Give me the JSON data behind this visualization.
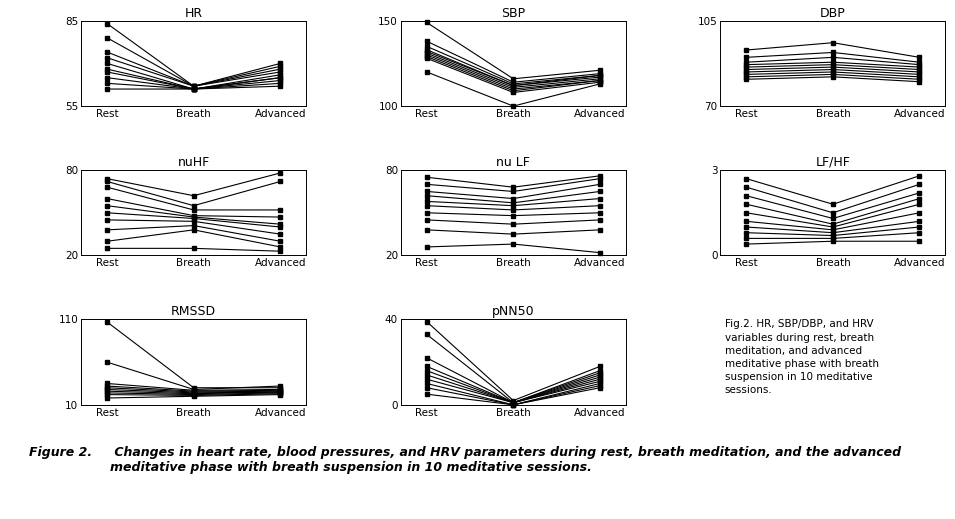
{
  "subplots": [
    {
      "title": "HR",
      "ylim": [
        55,
        85
      ],
      "yticks": [
        55,
        85
      ],
      "series": [
        [
          84,
          62,
          70
        ],
        [
          79,
          62,
          69
        ],
        [
          74,
          62,
          68
        ],
        [
          72,
          62,
          67
        ],
        [
          70,
          61,
          66
        ],
        [
          68,
          61,
          65
        ],
        [
          67,
          61,
          65
        ],
        [
          65,
          61,
          64
        ],
        [
          63,
          61,
          63
        ],
        [
          61,
          61,
          62
        ]
      ]
    },
    {
      "title": "SBP",
      "ylim": [
        100,
        150
      ],
      "yticks": [
        100,
        150
      ],
      "series": [
        [
          149,
          116,
          121
        ],
        [
          138,
          114,
          119
        ],
        [
          135,
          113,
          118
        ],
        [
          133,
          112,
          118
        ],
        [
          132,
          112,
          117
        ],
        [
          131,
          111,
          116
        ],
        [
          130,
          110,
          115
        ],
        [
          129,
          109,
          115
        ],
        [
          128,
          108,
          114
        ],
        [
          120,
          100,
          113
        ]
      ]
    },
    {
      "title": "DBP",
      "ylim": [
        70,
        105
      ],
      "yticks": [
        70,
        105
      ],
      "series": [
        [
          93,
          96,
          90
        ],
        [
          90,
          92,
          88
        ],
        [
          88,
          90,
          87
        ],
        [
          87,
          88,
          86
        ],
        [
          86,
          87,
          85
        ],
        [
          85,
          86,
          84
        ],
        [
          84,
          85,
          83
        ],
        [
          83,
          84,
          82
        ],
        [
          82,
          83,
          81
        ],
        [
          81,
          82,
          80
        ]
      ]
    },
    {
      "title": "nuHF",
      "ylim": [
        20,
        80
      ],
      "yticks": [
        20,
        80
      ],
      "series": [
        [
          74,
          62,
          78
        ],
        [
          72,
          55,
          72
        ],
        [
          68,
          52,
          52
        ],
        [
          60,
          48,
          47
        ],
        [
          55,
          47,
          42
        ],
        [
          50,
          46,
          40
        ],
        [
          45,
          44,
          35
        ],
        [
          38,
          41,
          30
        ],
        [
          30,
          38,
          26
        ],
        [
          25,
          25,
          23
        ]
      ]
    },
    {
      "title": "nu LF",
      "ylim": [
        20,
        80
      ],
      "yticks": [
        20,
        80
      ],
      "series": [
        [
          75,
          68,
          76
        ],
        [
          70,
          65,
          74
        ],
        [
          65,
          60,
          70
        ],
        [
          62,
          57,
          65
        ],
        [
          58,
          55,
          60
        ],
        [
          55,
          52,
          55
        ],
        [
          50,
          48,
          50
        ],
        [
          45,
          42,
          45
        ],
        [
          38,
          35,
          38
        ],
        [
          26,
          28,
          22
        ]
      ]
    },
    {
      "title": "LF/HF",
      "ylim": [
        0,
        3
      ],
      "yticks": [
        0,
        3
      ],
      "series": [
        [
          2.7,
          1.8,
          2.8
        ],
        [
          2.4,
          1.5,
          2.5
        ],
        [
          2.1,
          1.3,
          2.2
        ],
        [
          1.8,
          1.1,
          2.0
        ],
        [
          1.5,
          1.0,
          1.8
        ],
        [
          1.2,
          0.9,
          1.5
        ],
        [
          1.0,
          0.8,
          1.2
        ],
        [
          0.8,
          0.7,
          1.0
        ],
        [
          0.6,
          0.6,
          0.8
        ],
        [
          0.4,
          0.5,
          0.5
        ]
      ]
    },
    {
      "title": "RMSSD",
      "ylim": [
        10,
        110
      ],
      "yticks": [
        10,
        110
      ],
      "series": [
        [
          107,
          30,
          30
        ],
        [
          60,
          28,
          32
        ],
        [
          35,
          27,
          28
        ],
        [
          32,
          26,
          27
        ],
        [
          30,
          25,
          26
        ],
        [
          28,
          24,
          25
        ],
        [
          26,
          23,
          25
        ],
        [
          24,
          22,
          24
        ],
        [
          22,
          21,
          23
        ],
        [
          18,
          20,
          22
        ]
      ]
    },
    {
      "title": "pNN50",
      "ylim": [
        0,
        40
      ],
      "yticks": [
        0,
        40
      ],
      "series": [
        [
          39,
          2,
          18
        ],
        [
          33,
          1,
          16
        ],
        [
          22,
          1,
          15
        ],
        [
          18,
          1,
          14
        ],
        [
          16,
          1,
          13
        ],
        [
          14,
          1,
          12
        ],
        [
          12,
          1,
          11
        ],
        [
          10,
          0,
          10
        ],
        [
          8,
          0,
          9
        ],
        [
          5,
          0,
          8
        ]
      ]
    }
  ],
  "xlabels": [
    "Rest",
    "Breath",
    "Advanced"
  ],
  "fig_text": "Fig.2. HR, SBP/DBP, and HRV\nvariables during rest, breath\nmeditation, and advanced\nmeditative phase with breath\nsuspension in 10 meditative\nsessions.",
  "caption_bold": "Figure 2.",
  "caption_rest": " Changes in heart rate, blood pressures, and HRV parameters during rest, breath meditation, and the advanced\nmeditative phase with breath suspension in 10 meditative sessions.",
  "line_color": "#000000",
  "marker": "s",
  "markersize": 3,
  "linewidth": 0.8,
  "background": "#ffffff"
}
